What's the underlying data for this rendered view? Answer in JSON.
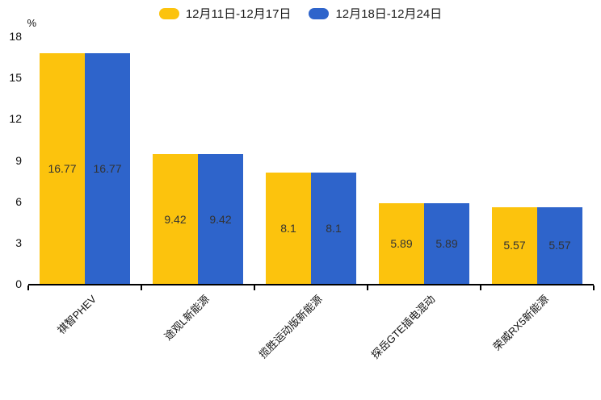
{
  "chart_data": {
    "type": "bar",
    "title": "",
    "unit_label": "%",
    "categories": [
      "祺智PHEV",
      "途观L新能源",
      "揽胜运动版新能源",
      "探岳GTE插电混动",
      "荣威RX5新能源"
    ],
    "series": [
      {
        "name": "12月11日-12月17日",
        "color": "#FCC30D",
        "values": [
          16.77,
          9.42,
          8.1,
          5.89,
          5.57
        ]
      },
      {
        "name": "12月18日-12月24日",
        "color": "#2E64CB",
        "values": [
          16.77,
          9.42,
          8.1,
          5.89,
          5.57
        ]
      }
    ],
    "yticks": [
      0,
      3,
      6,
      9,
      12,
      15,
      18
    ],
    "ylim": [
      0,
      18
    ],
    "grid": false,
    "legend_position": "top",
    "value_label_position": "inside-center",
    "colors": {
      "axis": "#000000",
      "tick_text": "#111111",
      "value_text": "#333333",
      "background": "#ffffff"
    }
  }
}
